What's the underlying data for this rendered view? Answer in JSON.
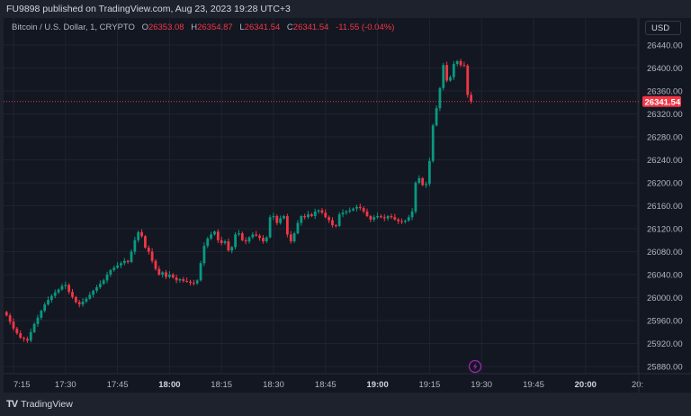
{
  "header": {
    "published": "FU9898 published on TradingView.com, Aug 23, 2023 19:28 UTC+3"
  },
  "legend": {
    "symbol": "Bitcoin / U.S. Dollar, 1, CRYPTO",
    "open_label": "O",
    "open": "26353.08",
    "high_label": "H",
    "high": "26354.87",
    "low_label": "L",
    "low": "26341.54",
    "close_label": "C",
    "close": "26341.54",
    "change": "-11.55 (-0.04%)"
  },
  "currency_button": "USD",
  "footer": {
    "logo": "TradingView"
  },
  "colors": {
    "up": "#089981",
    "down": "#f23645",
    "background": "#131722",
    "grid": "#1f2330",
    "event_icon": "#9c27b0"
  },
  "event_icon": "lightning-icon",
  "chart_data": {
    "type": "candlestick",
    "interval_minutes": 1,
    "first_candle_time": "17:13",
    "closes": [
      25969,
      25958,
      25946,
      25938,
      25930,
      25928,
      25925,
      25940,
      25954,
      25965,
      25977,
      25988,
      25996,
      26003,
      26009,
      26014,
      26020,
      26022,
      26010,
      26001,
      25992,
      25988,
      25993,
      25998,
      26005,
      26012,
      26018,
      26024,
      26030,
      26040,
      26048,
      26052,
      26056,
      26060,
      26064,
      26062,
      26080,
      26100,
      26114,
      26107,
      26087,
      26080,
      26064,
      26050,
      26040,
      26044,
      26036,
      26040,
      26035,
      26030,
      26032,
      26029,
      26028,
      26026,
      26025,
      26030,
      26060,
      26090,
      26103,
      26110,
      26115,
      26100,
      26095,
      26098,
      26082,
      26088,
      26110,
      26112,
      26100,
      26098,
      26105,
      26110,
      26108,
      26104,
      26098,
      26105,
      26140,
      26142,
      26130,
      26138,
      26142,
      26110,
      26098,
      26112,
      26130,
      26142,
      26140,
      26145,
      26142,
      26150,
      26152,
      26148,
      26140,
      26135,
      26126,
      26125,
      26145,
      26148,
      26150,
      26152,
      26155,
      26158,
      26156,
      26150,
      26142,
      26136,
      26140,
      26142,
      26140,
      26138,
      26142,
      26140,
      26136,
      26133,
      26132,
      26134,
      26140,
      26150,
      26200,
      26208,
      26196,
      26198,
      26238,
      26300,
      26330,
      26365,
      26405,
      26378,
      26384,
      26407,
      26412,
      26405,
      26404,
      26353.08,
      26341.54
    ],
    "last_price": "26341.54",
    "y_ticks": [
      "26440.00",
      "26400.00",
      "26360.00",
      "26320.00",
      "26280.00",
      "26240.00",
      "26200.00",
      "26160.00",
      "26120.00",
      "26080.00",
      "26040.00",
      "26000.00",
      "25960.00",
      "25920.00",
      "25880.00"
    ],
    "x_ticks": [
      {
        "label": "7:15",
        "bold": false
      },
      {
        "label": "17:30",
        "bold": false
      },
      {
        "label": "17:45",
        "bold": false
      },
      {
        "label": "18:00",
        "bold": true
      },
      {
        "label": "18:15",
        "bold": false
      },
      {
        "label": "18:30",
        "bold": false
      },
      {
        "label": "18:45",
        "bold": false
      },
      {
        "label": "19:00",
        "bold": true
      },
      {
        "label": "19:15",
        "bold": false
      },
      {
        "label": "19:30",
        "bold": false
      },
      {
        "label": "19:45",
        "bold": false
      },
      {
        "label": "20:00",
        "bold": true
      },
      {
        "label": "20:",
        "bold": false
      }
    ],
    "grid": true
  }
}
